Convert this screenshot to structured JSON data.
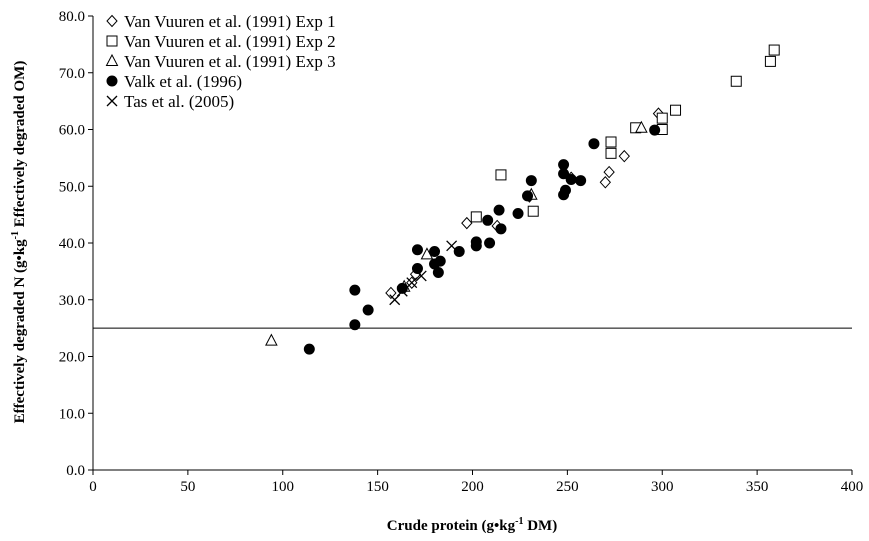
{
  "chart_data": {
    "type": "scatter",
    "xlabel_main": "Crude protein (g•kg",
    "xlabel_sup": "-1",
    "xlabel_tail": " DM)",
    "ylabel_main": "Effectively degraded N (g•kg",
    "ylabel_sup": "-1",
    "ylabel_tail": " Effectively degraded OM)",
    "xlim": [
      0,
      400
    ],
    "ylim": [
      0,
      80
    ],
    "xticks": [
      "0",
      "50",
      "100",
      "150",
      "200",
      "250",
      "300",
      "350",
      "400"
    ],
    "yticks": [
      "0.0",
      "10.0",
      "20.0",
      "30.0",
      "40.0",
      "50.0",
      "60.0",
      "70.0",
      "80.0"
    ],
    "grid": false,
    "legend_position": "top-left",
    "reference_line_y": 25,
    "series": [
      {
        "name": "Van Vuuren et al. (1991) Exp 1",
        "marker": "diamond",
        "points": [
          [
            157,
            31.2
          ],
          [
            168,
            33
          ],
          [
            170,
            34.5
          ],
          [
            197,
            43.5
          ],
          [
            213,
            43
          ],
          [
            230,
            48.2
          ],
          [
            252,
            51.5
          ],
          [
            270,
            50.7
          ],
          [
            272,
            52.5
          ],
          [
            280,
            55.3
          ],
          [
            298,
            62.8
          ]
        ]
      },
      {
        "name": "Van Vuuren et al. (1991) Exp 2",
        "marker": "square",
        "points": [
          [
            202,
            44.6
          ],
          [
            215,
            52
          ],
          [
            232,
            45.6
          ],
          [
            273,
            57.8
          ],
          [
            273,
            55.8
          ],
          [
            286,
            60.3
          ],
          [
            300,
            60
          ],
          [
            300,
            62
          ],
          [
            307,
            63.4
          ],
          [
            339,
            68.5
          ],
          [
            357,
            72
          ],
          [
            359,
            74
          ]
        ]
      },
      {
        "name": "Van Vuuren et al. (1991) Exp 3",
        "marker": "triangle",
        "points": [
          [
            94,
            22.8
          ],
          [
            164,
            32.3
          ],
          [
            176,
            38
          ],
          [
            231,
            48.5
          ],
          [
            289,
            60.3
          ]
        ]
      },
      {
        "name": "Valk et al. (1996)",
        "marker": "circle",
        "points": [
          [
            114,
            21.3
          ],
          [
            138,
            31.7
          ],
          [
            138,
            25.6
          ],
          [
            145,
            28.2
          ],
          [
            163,
            32
          ],
          [
            171,
            38.8
          ],
          [
            171,
            35.5
          ],
          [
            180,
            38.5
          ],
          [
            180,
            36.3
          ],
          [
            183,
            36.8
          ],
          [
            182,
            34.8
          ],
          [
            193,
            38.5
          ],
          [
            202,
            40.2
          ],
          [
            202,
            39.5
          ],
          [
            208,
            44
          ],
          [
            209,
            40
          ],
          [
            214,
            45.8
          ],
          [
            215,
            42.5
          ],
          [
            224,
            45.2
          ],
          [
            229,
            48.3
          ],
          [
            231,
            51
          ],
          [
            248,
            53.8
          ],
          [
            248,
            52.2
          ],
          [
            248,
            48.5
          ],
          [
            249,
            49.3
          ],
          [
            252,
            51.2
          ],
          [
            257,
            51
          ],
          [
            264,
            57.5
          ],
          [
            296,
            59.9
          ]
        ]
      },
      {
        "name": "Tas et al. (2005)",
        "marker": "cross",
        "points": [
          [
            159,
            30
          ],
          [
            163,
            31.5
          ],
          [
            168,
            33
          ],
          [
            173,
            34.2
          ],
          [
            189,
            39.5
          ]
        ]
      }
    ]
  }
}
